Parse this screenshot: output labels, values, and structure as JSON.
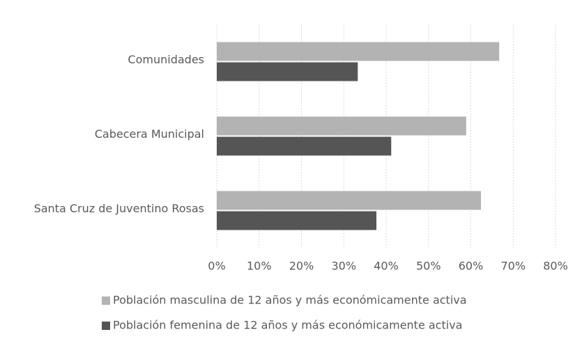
{
  "chart_data": {
    "type": "hbar",
    "categories": [
      "Comunidades",
      "Cabecera Municipal",
      "Santa Cruz de Juventino Rosas"
    ],
    "series": [
      {
        "name": "Población masculina de 12 años y más económicamente activa",
        "color": "#b3b3b3",
        "values": [
          66.7,
          58.9,
          62.4
        ]
      },
      {
        "name": "Población femenina de 12 años y más económicamente activa",
        "color": "#555555",
        "values": [
          33.3,
          41.2,
          37.7
        ]
      }
    ],
    "xlim": [
      0,
      80
    ],
    "xticks": [
      {
        "value": 0,
        "label": "0%"
      },
      {
        "value": 10,
        "label": "10%"
      },
      {
        "value": 20,
        "label": "20%"
      },
      {
        "value": 30,
        "label": "30%"
      },
      {
        "value": 40,
        "label": "40%"
      },
      {
        "value": 50,
        "label": "50%"
      },
      {
        "value": 60,
        "label": "60%"
      },
      {
        "value": 70,
        "label": "70%"
      },
      {
        "value": 80,
        "label": "80%"
      }
    ],
    "grid": true,
    "legend": "bottom"
  }
}
